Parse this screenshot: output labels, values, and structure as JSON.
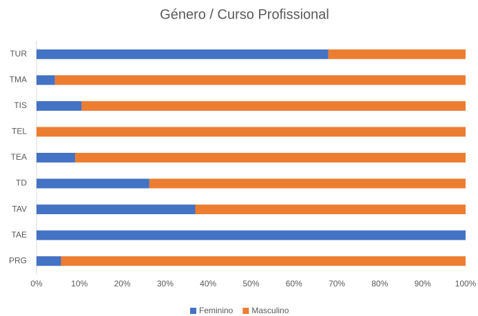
{
  "chart_data": {
    "type": "stacked_barh",
    "title": "Género / Curso Profissional",
    "categories": [
      "TUR",
      "TMA",
      "TIS",
      "TEL",
      "TEA",
      "TD",
      "TAV",
      "TAE",
      "PRG"
    ],
    "series": [
      {
        "name": "Feminino",
        "color": "#4472c4",
        "values": [
          68,
          4.3,
          10.5,
          0,
          9,
          26.3,
          37,
          100,
          5.7
        ]
      },
      {
        "name": "Masculino",
        "color": "#ed7d31",
        "values": [
          32,
          95.7,
          89.5,
          100,
          91,
          73.7,
          63,
          0,
          94.3
        ]
      }
    ],
    "xlim": [
      0,
      100
    ],
    "xticks": [
      {
        "value": 0,
        "label": "0%"
      },
      {
        "value": 10,
        "label": "10%"
      },
      {
        "value": 20,
        "label": "20%"
      },
      {
        "value": 30,
        "label": "30%"
      },
      {
        "value": 40,
        "label": "40%"
      },
      {
        "value": 50,
        "label": "50%"
      },
      {
        "value": 60,
        "label": "60%"
      },
      {
        "value": 70,
        "label": "70%"
      },
      {
        "value": 80,
        "label": "80%"
      },
      {
        "value": 90,
        "label": "90%"
      },
      {
        "value": 100,
        "label": "100%"
      }
    ],
    "legend": "bottom"
  }
}
